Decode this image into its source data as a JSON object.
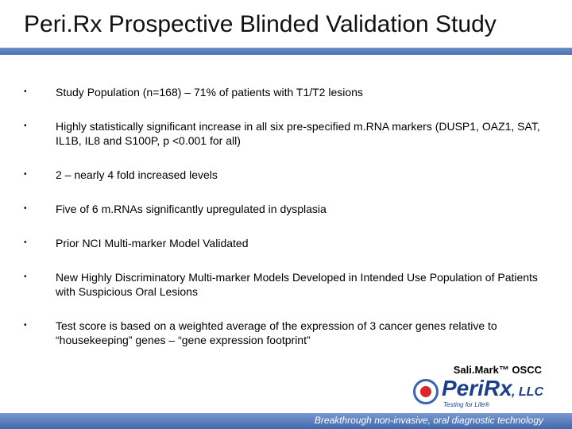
{
  "slide": {
    "title": "Peri.Rx Prospective Blinded Validation Study",
    "bullet_marker": "•",
    "bullets": [
      {
        "text": "Study Population (n=168) – 71% of patients with T1/T2 lesions"
      },
      {
        "text": "Highly statistically significant increase in all six pre-specified m.RNA markers (DUSP1, OAZ1, SAT, IL1B, IL8 and S100P, p <0.001 for all)"
      },
      {
        "text": "2 – nearly 4 fold increased levels"
      },
      {
        "text": "Five of 6 m.RNAs significantly upregulated in dysplasia"
      },
      {
        "text": "Prior NCI Multi-marker Model Validated"
      },
      {
        "text": "New Highly Discriminatory Multi-marker Models Developed in Intended Use Population of Patients with Suspicious Oral Lesions"
      },
      {
        "text": "Test score is based on a weighted average of the expression of 3 cancer genes relative to “housekeeping” genes – “gene expression footprint”"
      }
    ],
    "product_label": "Sali.Mark™ OSCC",
    "logo": {
      "name": "PeriRx",
      "suffix": ", LLC",
      "tagline": "Testing for Life®"
    },
    "footer_text": "Breakthrough non-invasive, oral diagnostic technology",
    "colors": {
      "accent_blue": "#4a6fb0",
      "logo_red": "#d8262c",
      "logo_navy": "#1b3f8b"
    }
  }
}
